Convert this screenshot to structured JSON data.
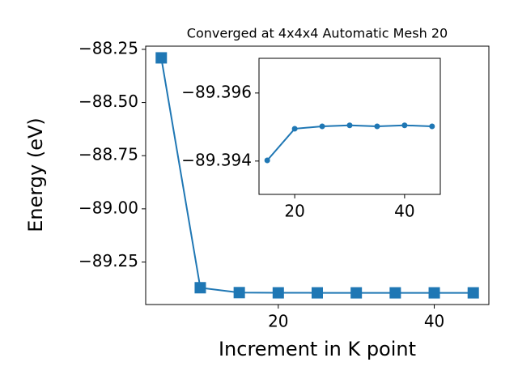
{
  "chart_data": [
    {
      "type": "line",
      "title": "Converged at 4x4x4 Automatic Mesh 20",
      "x_label": "Increment in K point",
      "y_label": "Energy (eV)",
      "x": [
        5,
        10,
        15,
        20,
        25,
        30,
        35,
        40,
        45
      ],
      "values": [
        -88.29,
        -89.371,
        -89.39402,
        -89.39495,
        -89.39502,
        -89.39505,
        -89.39502,
        -89.39505,
        -89.39502
      ],
      "color": "#1f77b4",
      "marker": "square",
      "xlim": [
        3,
        47
      ],
      "ylim": [
        -89.45,
        -88.235
      ],
      "xticks": [
        20,
        40
      ],
      "yticks": [
        {
          "value": -88.25,
          "label": "−88.25"
        },
        {
          "value": -88.5,
          "label": "−88.50"
        },
        {
          "value": -88.75,
          "label": "−88.75"
        },
        {
          "value": -89.0,
          "label": "−89.00"
        },
        {
          "value": -89.25,
          "label": "−89.25"
        }
      ]
    },
    {
      "type": "line",
      "x": [
        15,
        20,
        25,
        30,
        35,
        40,
        45
      ],
      "values": [
        -89.39402,
        -89.39495,
        -89.39502,
        -89.39505,
        -89.39502,
        -89.39505,
        -89.39502
      ],
      "color": "#1f77b4",
      "marker": "circle",
      "xlim": [
        13.5,
        46.5
      ],
      "ylim": [
        -89.39302,
        -89.39702
      ],
      "xticks": [
        20,
        40
      ],
      "yticks": [
        {
          "value": -89.396,
          "label": "−89.396"
        },
        {
          "value": -89.394,
          "label": "−89.394"
        }
      ]
    }
  ]
}
